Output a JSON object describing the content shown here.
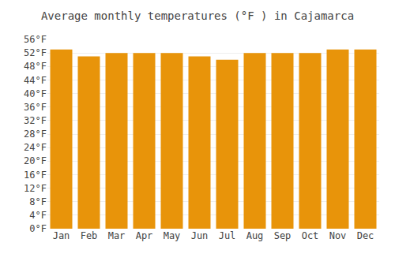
{
  "chart_data": {
    "type": "bar",
    "title": "Average monthly temperatures (°F ) in Cajamarca",
    "categories": [
      "Jan",
      "Feb",
      "Mar",
      "Apr",
      "May",
      "Jun",
      "Jul",
      "Aug",
      "Sep",
      "Oct",
      "Nov",
      "Dec"
    ],
    "values": [
      53,
      51,
      52,
      52,
      52,
      51,
      50,
      52,
      52,
      52,
      53,
      53
    ],
    "color": "#E8940A",
    "ylim": [
      0,
      56
    ],
    "yticks": [
      {
        "value": 0,
        "label": "0°F"
      },
      {
        "value": 4,
        "label": "4°F"
      },
      {
        "value": 8,
        "label": "8°F"
      },
      {
        "value": 12,
        "label": "12°F"
      },
      {
        "value": 16,
        "label": "16°F"
      },
      {
        "value": 20,
        "label": "20°F"
      },
      {
        "value": 24,
        "label": "24°F"
      },
      {
        "value": 28,
        "label": "28°F"
      },
      {
        "value": 32,
        "label": "32°F"
      },
      {
        "value": 36,
        "label": "36°F"
      },
      {
        "value": 40,
        "label": "40°F"
      },
      {
        "value": 44,
        "label": "44°F"
      },
      {
        "value": 48,
        "label": "48°F"
      },
      {
        "value": 52,
        "label": "52°F"
      },
      {
        "value": 56,
        "label": "56°F"
      }
    ],
    "grid": true
  }
}
